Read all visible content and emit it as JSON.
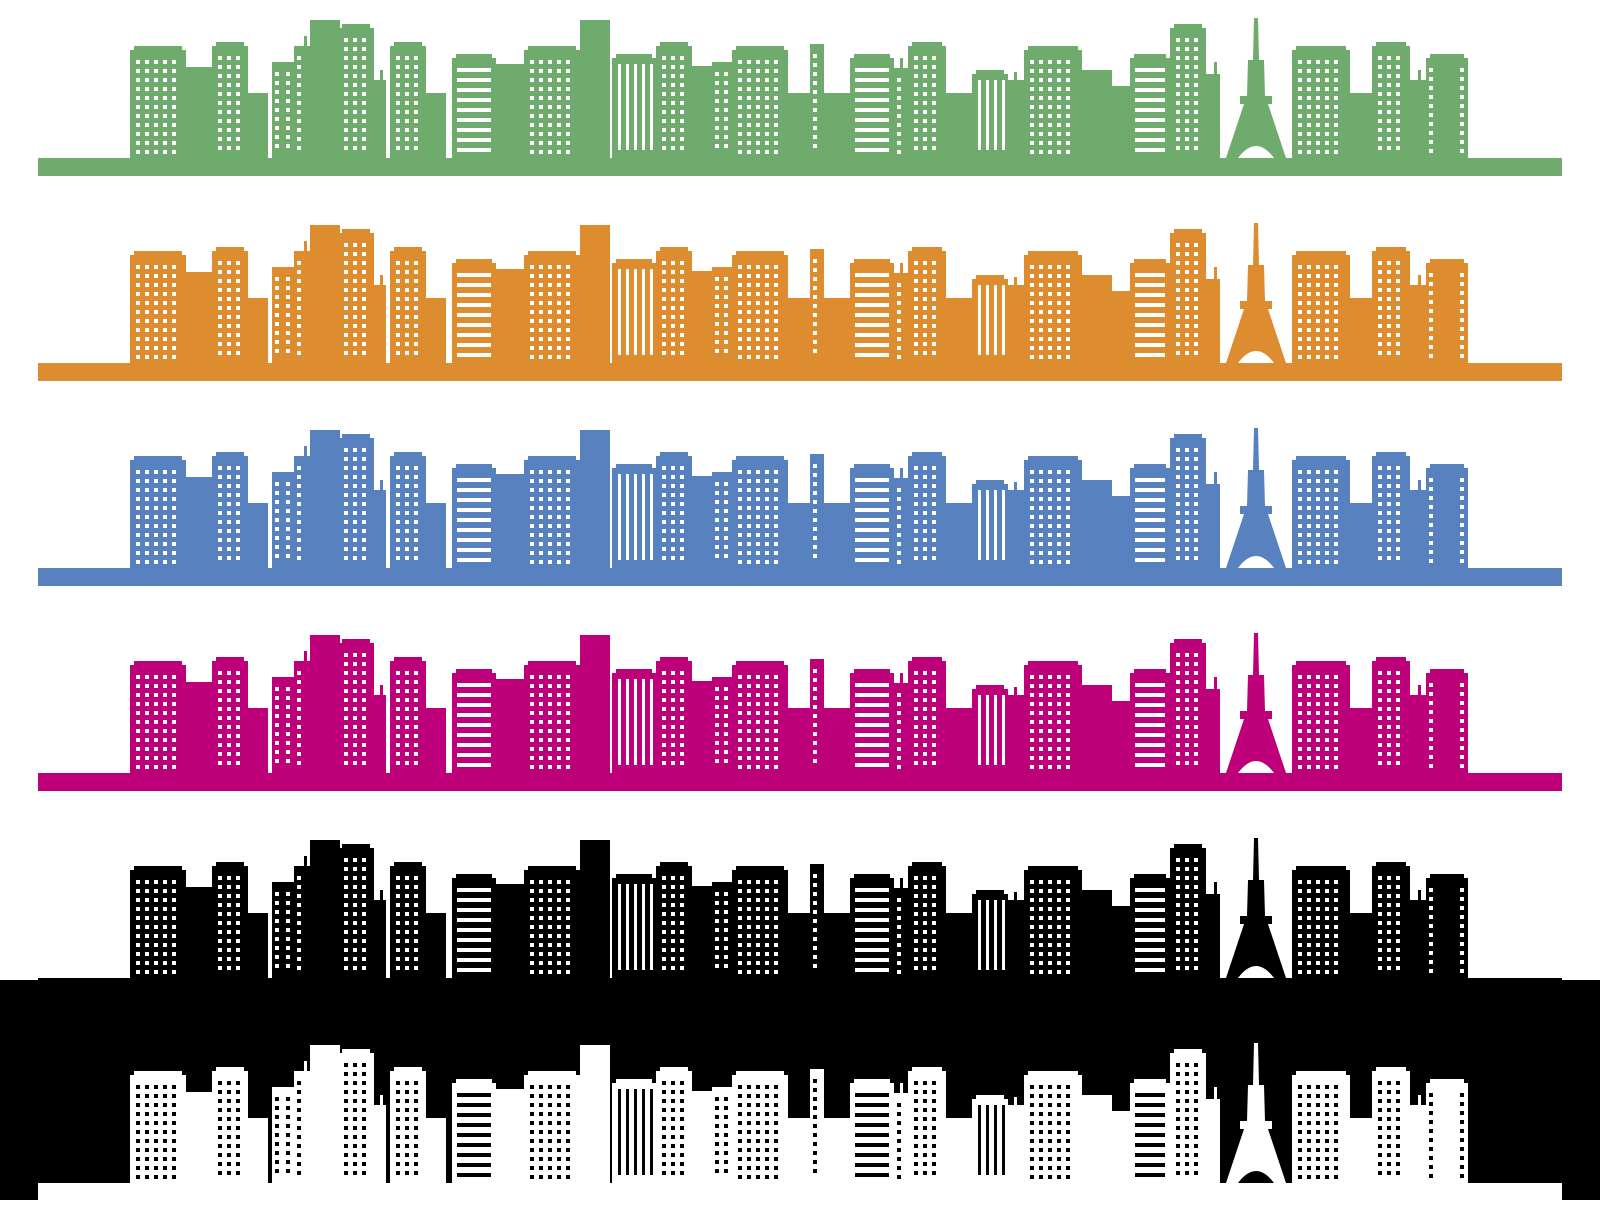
{
  "background": "#ffffff",
  "skylines": [
    {
      "name": "green",
      "fill": "#6eab6c",
      "window": "#ffffff",
      "backdrop": "#ffffff"
    },
    {
      "name": "orange",
      "fill": "#dd8d30",
      "window": "#ffffff",
      "backdrop": "#ffffff"
    },
    {
      "name": "blue",
      "fill": "#5781bf",
      "window": "#ffffff",
      "backdrop": "#ffffff"
    },
    {
      "name": "magenta",
      "fill": "#bd0079",
      "window": "#ffffff",
      "backdrop": "#ffffff"
    },
    {
      "name": "black",
      "fill": "#000000",
      "window": "#ffffff",
      "backdrop": "#ffffff"
    },
    {
      "name": "white",
      "fill": "#ffffff",
      "window": "#000000",
      "backdrop": "#000000"
    }
  ],
  "landmark": "tower"
}
